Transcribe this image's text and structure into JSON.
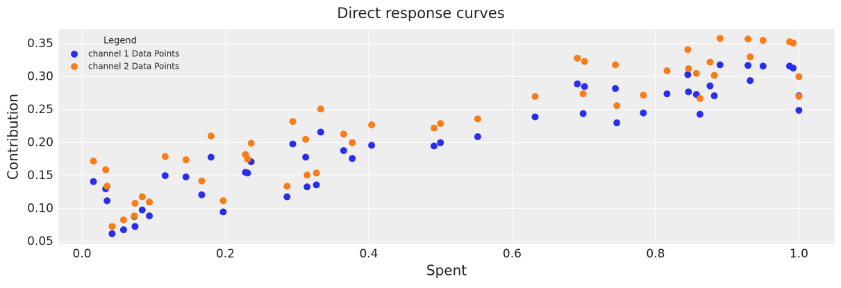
{
  "chart_data": {
    "type": "scatter",
    "title": "Direct response curves",
    "x_label": "Spent",
    "y_label": "Contribution",
    "legend_title": "Legend",
    "legend": "upper left",
    "grid": true,
    "x": [
      0.016,
      0.033,
      0.035,
      0.042,
      0.058,
      0.074,
      0.073,
      0.084,
      0.094,
      0.116,
      0.145,
      0.167,
      0.18,
      0.197,
      0.228,
      0.231,
      0.236,
      0.286,
      0.294,
      0.312,
      0.314,
      0.327,
      0.333,
      0.365,
      0.377,
      0.404,
      0.491,
      0.5,
      0.552,
      0.632,
      0.691,
      0.699,
      0.701,
      0.744,
      0.746,
      0.783,
      0.816,
      0.845,
      0.846,
      0.857,
      0.862,
      0.876,
      0.882,
      0.89,
      0.929,
      0.932,
      0.95,
      0.987,
      0.992,
      1.0,
      1.0
    ],
    "series": [
      {
        "name": "channel 1 Data Points",
        "color": "#2a2eec",
        "values": [
          0.141,
          0.13,
          0.112,
          0.062,
          0.068,
          0.073,
          0.088,
          0.098,
          0.089,
          0.15,
          0.148,
          0.121,
          0.178,
          0.095,
          0.155,
          0.154,
          0.171,
          0.118,
          0.198,
          0.178,
          0.133,
          0.136,
          0.216,
          0.188,
          0.176,
          0.196,
          0.195,
          0.2,
          0.209,
          0.239,
          0.289,
          0.244,
          0.285,
          0.282,
          0.23,
          0.245,
          0.274,
          0.303,
          0.277,
          0.273,
          0.243,
          0.286,
          0.271,
          0.318,
          0.317,
          0.294,
          0.316,
          0.316,
          0.313,
          0.271,
          0.249
        ]
      },
      {
        "name": "channel 2 Data Points",
        "color": "#fa7c17",
        "values": [
          0.172,
          0.159,
          0.134,
          0.073,
          0.083,
          0.108,
          0.089,
          0.118,
          0.11,
          0.179,
          0.174,
          0.142,
          0.21,
          0.112,
          0.182,
          0.175,
          0.199,
          0.134,
          0.232,
          0.205,
          0.151,
          0.154,
          0.251,
          0.213,
          0.2,
          0.227,
          0.222,
          0.229,
          0.236,
          0.27,
          0.328,
          0.274,
          0.323,
          0.318,
          0.256,
          0.272,
          0.309,
          0.341,
          0.312,
          0.305,
          0.267,
          0.322,
          0.302,
          0.358,
          0.357,
          0.33,
          0.355,
          0.353,
          0.351,
          0.3,
          0.27
        ]
      }
    ],
    "xlim": [
      -0.032,
      1.05
    ],
    "ylim": [
      0.046,
      0.372
    ],
    "xticks": [
      {
        "value": 0,
        "label": "0.0"
      },
      0.2,
      0.4,
      0.6,
      0.8,
      {
        "value": 1,
        "label": "1.0"
      }
    ],
    "yticks": [
      0.05,
      {
        "value": 0.1,
        "label": "0.10"
      },
      0.15,
      {
        "value": 0.2,
        "label": "0.20"
      },
      0.25,
      {
        "value": 0.3,
        "label": "0.30"
      },
      0.35
    ]
  }
}
